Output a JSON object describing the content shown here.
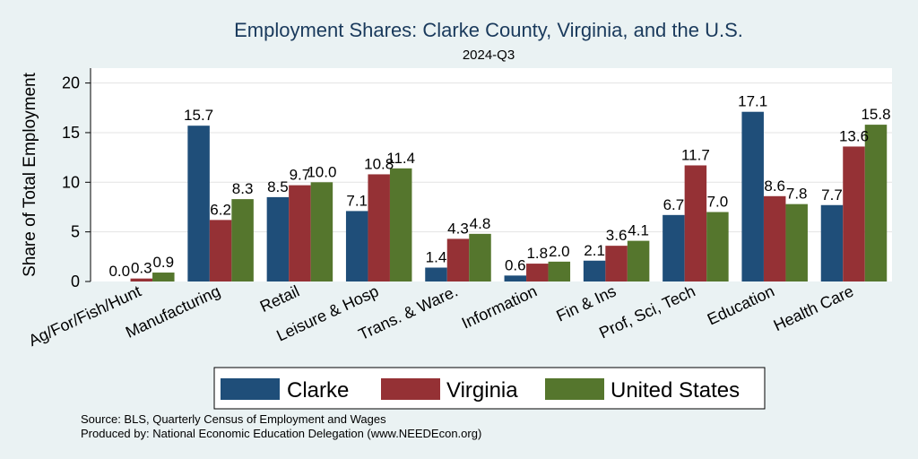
{
  "chart_data": {
    "type": "bar",
    "title": "Employment Shares: Clarke County, Virginia, and the U.S.",
    "subtitle": "2024-Q3",
    "xlabel": "",
    "ylabel": "Share of Total Employment",
    "ylim": [
      0,
      21.5
    ],
    "yticks": [
      0,
      5,
      10,
      15,
      20
    ],
    "grid": true,
    "legend_position": "bottom",
    "categories": [
      "Ag/For/Fish/Hunt",
      "Manufacturing",
      "Retail",
      "Leisure & Hosp",
      "Trans. & Ware.",
      "Information",
      "Fin & Ins",
      "Prof, Sci, Tech",
      "Education",
      "Health Care"
    ],
    "series": [
      {
        "name": "Clarke",
        "color": "#1f4e79",
        "values": [
          0.0,
          15.7,
          8.5,
          7.1,
          1.4,
          0.6,
          2.1,
          6.7,
          17.1,
          7.7
        ],
        "labels": [
          "0.0",
          "15.7",
          "8.5",
          "7.1",
          "1.4",
          "0.6",
          "2.1",
          "6.7",
          "17.1",
          "7.7"
        ]
      },
      {
        "name": "Virginia",
        "color": "#953135",
        "values": [
          0.3,
          6.2,
          9.7,
          10.8,
          4.3,
          1.8,
          3.6,
          11.7,
          8.6,
          13.6
        ],
        "labels": [
          "0.3",
          "6.2",
          "9.7",
          "10.8",
          "4.3",
          "1.8",
          "3.6",
          "11.7",
          "8.6",
          "13.6"
        ]
      },
      {
        "name": "United States",
        "color": "#55762d",
        "values": [
          0.9,
          8.3,
          10.0,
          11.4,
          4.8,
          2.0,
          4.1,
          7.0,
          7.8,
          15.8
        ],
        "labels": [
          "0.9",
          "8.3",
          "10.0",
          "11.4",
          "4.8",
          "2.0",
          "4.1",
          "7.0",
          "7.8",
          "15.8"
        ]
      }
    ]
  },
  "notes": {
    "source": "Source: BLS, Quarterly Census of Employment and Wages",
    "produced_by": "Produced by: National Economic Education Delegation (www.NEEDEcon.org)"
  }
}
